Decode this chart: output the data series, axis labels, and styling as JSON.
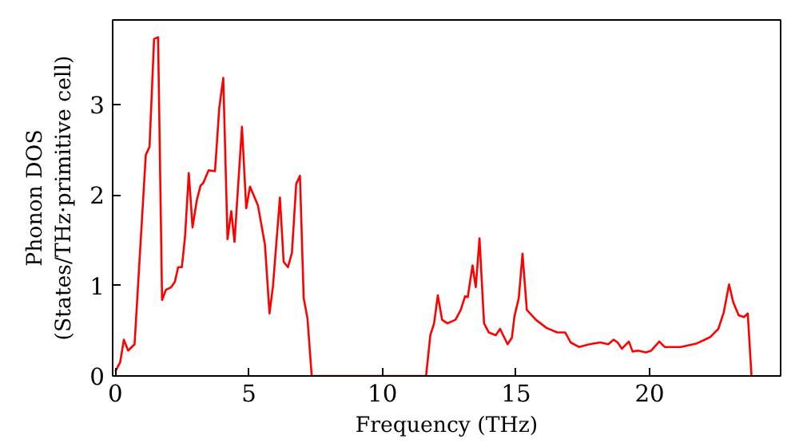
{
  "chart_data": {
    "type": "line",
    "xlabel": "Frequency (THz)",
    "ylabel": "Phonon DOS\n(States/THz·primitive cell)",
    "xlim": [
      -0.1,
      24.9
    ],
    "ylim": [
      0,
      3.93
    ],
    "xticks": [
      0,
      5,
      10,
      15,
      20
    ],
    "yticks": [
      0,
      1,
      2,
      3
    ],
    "grid": false,
    "marker": "none",
    "line_style": "solid",
    "series": [
      {
        "color": "#ff0000",
        "x": [
          0,
          0.18,
          0.32,
          0.48,
          0.72,
          1.14,
          1.28,
          1.45,
          1.6,
          1.75,
          1.89,
          2.09,
          2.23,
          2.35,
          2.49,
          2.61,
          2.75,
          2.89,
          3.05,
          3.19,
          3.29,
          3.49,
          3.73,
          3.89,
          4.04,
          4.2,
          4.34,
          4.46,
          4.74,
          4.9,
          5.04,
          5.2,
          5.34,
          5.6,
          5.77,
          5.9,
          6.16,
          6.3,
          6.46,
          6.61,
          6.77,
          6.91,
          7.05,
          7.19,
          7.35,
          11.63,
          11.79,
          11.93,
          12.07,
          12.23,
          12.43,
          12.73,
          12.93,
          13.09,
          13.19,
          13.37,
          13.49,
          13.63,
          13.8,
          13.98,
          14.24,
          14.4,
          14.68,
          14.84,
          14.94,
          15.1,
          15.24,
          15.4,
          15.74,
          16.14,
          16.54,
          16.84,
          17.04,
          17.35,
          17.75,
          18.15,
          18.45,
          18.65,
          18.8,
          18.96,
          19.22,
          19.36,
          19.56,
          19.86,
          20.06,
          20.36,
          20.56,
          21.16,
          21.77,
          22.27,
          22.57,
          22.77,
          22.97,
          23.13,
          23.33,
          23.53,
          23.67,
          23.81
        ],
        "values": [
          0.05,
          0.15,
          0.4,
          0.28,
          0.35,
          2.44,
          2.53,
          3.72,
          3.74,
          0.84,
          0.95,
          0.98,
          1.04,
          1.2,
          1.2,
          1.54,
          2.24,
          1.64,
          1.94,
          2.1,
          2.13,
          2.27,
          2.26,
          2.96,
          3.29,
          1.51,
          1.82,
          1.48,
          2.75,
          1.85,
          2.09,
          1.98,
          1.88,
          1.45,
          0.69,
          0.99,
          1.97,
          1.26,
          1.2,
          1.36,
          2.12,
          2.21,
          0.86,
          0.64,
          0,
          0,
          0.45,
          0.58,
          0.89,
          0.62,
          0.58,
          0.62,
          0.73,
          0.88,
          0.87,
          1.22,
          0.98,
          1.52,
          0.58,
          0.48,
          0.45,
          0.52,
          0.35,
          0.42,
          0.66,
          0.86,
          1.35,
          0.73,
          0.62,
          0.53,
          0.48,
          0.48,
          0.37,
          0.32,
          0.35,
          0.37,
          0.35,
          0.4,
          0.37,
          0.3,
          0.38,
          0.27,
          0.28,
          0.26,
          0.28,
          0.38,
          0.32,
          0.32,
          0.36,
          0.43,
          0.52,
          0.7,
          1.01,
          0.81,
          0.67,
          0.65,
          0.69,
          0
        ]
      }
    ]
  }
}
